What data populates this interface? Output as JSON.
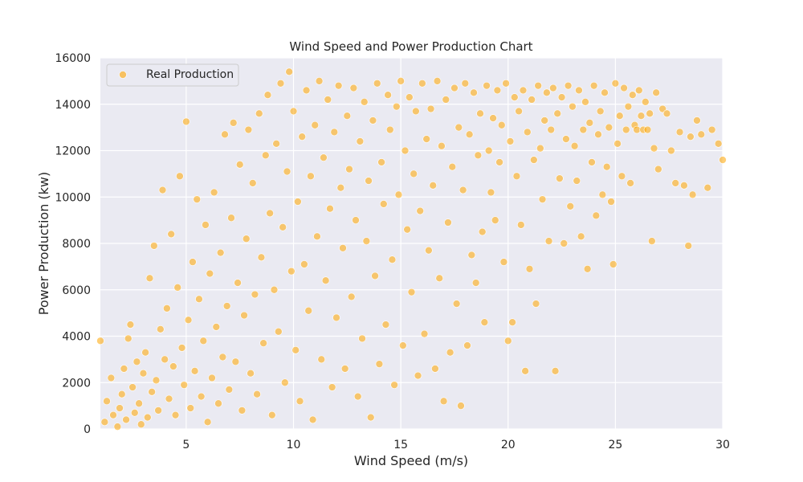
{
  "chart_data": {
    "type": "scatter",
    "title": "Wind Speed and Power Production Chart",
    "xlabel": "Wind Speed (m/s)",
    "ylabel": "Power Production (kw)",
    "xlim": [
      1,
      30
    ],
    "ylim": [
      0,
      16000
    ],
    "xticks": [
      5,
      10,
      15,
      20,
      25,
      30
    ],
    "yticks": [
      0,
      2000,
      4000,
      6000,
      8000,
      10000,
      12000,
      14000,
      16000
    ],
    "grid": true,
    "legend_position": "top-left",
    "series": [
      {
        "name": "Real Production",
        "color": "#ffa500",
        "points": [
          [
            1.0,
            3800
          ],
          [
            1.2,
            300
          ],
          [
            1.3,
            1200
          ],
          [
            1.5,
            2200
          ],
          [
            1.6,
            600
          ],
          [
            1.8,
            100
          ],
          [
            1.9,
            900
          ],
          [
            2.0,
            1500
          ],
          [
            2.1,
            2600
          ],
          [
            2.2,
            400
          ],
          [
            2.3,
            3900
          ],
          [
            2.4,
            4500
          ],
          [
            2.5,
            1800
          ],
          [
            2.6,
            700
          ],
          [
            2.7,
            2900
          ],
          [
            2.8,
            1100
          ],
          [
            2.9,
            200
          ],
          [
            3.0,
            2400
          ],
          [
            3.1,
            3300
          ],
          [
            3.2,
            500
          ],
          [
            3.3,
            6500
          ],
          [
            3.4,
            1600
          ],
          [
            3.5,
            7900
          ],
          [
            3.6,
            2100
          ],
          [
            3.7,
            800
          ],
          [
            3.8,
            4300
          ],
          [
            3.9,
            10300
          ],
          [
            4.0,
            3000
          ],
          [
            4.1,
            5200
          ],
          [
            4.2,
            1300
          ],
          [
            4.3,
            8400
          ],
          [
            4.4,
            2700
          ],
          [
            4.5,
            600
          ],
          [
            4.6,
            6100
          ],
          [
            4.7,
            10900
          ],
          [
            4.8,
            3500
          ],
          [
            4.9,
            1900
          ],
          [
            5.0,
            13250
          ],
          [
            5.1,
            4700
          ],
          [
            5.2,
            900
          ],
          [
            5.3,
            7200
          ],
          [
            5.4,
            2500
          ],
          [
            5.5,
            9900
          ],
          [
            5.6,
            5600
          ],
          [
            5.7,
            1400
          ],
          [
            5.8,
            3800
          ],
          [
            5.9,
            8800
          ],
          [
            6.0,
            300
          ],
          [
            6.1,
            6700
          ],
          [
            6.2,
            2200
          ],
          [
            6.3,
            10200
          ],
          [
            6.4,
            4400
          ],
          [
            6.5,
            1100
          ],
          [
            6.6,
            7600
          ],
          [
            6.7,
            3100
          ],
          [
            6.8,
            12700
          ],
          [
            6.9,
            5300
          ],
          [
            7.0,
            1700
          ],
          [
            7.1,
            9100
          ],
          [
            7.2,
            13200
          ],
          [
            7.3,
            2900
          ],
          [
            7.4,
            6300
          ],
          [
            7.5,
            11400
          ],
          [
            7.6,
            800
          ],
          [
            7.7,
            4900
          ],
          [
            7.8,
            8200
          ],
          [
            7.9,
            12900
          ],
          [
            8.0,
            2400
          ],
          [
            8.1,
            10600
          ],
          [
            8.2,
            5800
          ],
          [
            8.3,
            1500
          ],
          [
            8.4,
            13600
          ],
          [
            8.5,
            7400
          ],
          [
            8.6,
            3700
          ],
          [
            8.7,
            11800
          ],
          [
            8.8,
            14400
          ],
          [
            8.9,
            9300
          ],
          [
            9.0,
            600
          ],
          [
            9.1,
            6000
          ],
          [
            9.2,
            12300
          ],
          [
            9.3,
            4200
          ],
          [
            9.4,
            14900
          ],
          [
            9.5,
            8700
          ],
          [
            9.6,
            2000
          ],
          [
            9.7,
            11100
          ],
          [
            9.8,
            15400
          ],
          [
            9.9,
            6800
          ],
          [
            10.0,
            13700
          ],
          [
            10.1,
            3400
          ],
          [
            10.2,
            9800
          ],
          [
            10.3,
            1200
          ],
          [
            10.4,
            12600
          ],
          [
            10.5,
            7100
          ],
          [
            10.6,
            14600
          ],
          [
            10.7,
            5100
          ],
          [
            10.8,
            10900
          ],
          [
            10.9,
            400
          ],
          [
            11.0,
            13100
          ],
          [
            11.1,
            8300
          ],
          [
            11.2,
            15000
          ],
          [
            11.3,
            3000
          ],
          [
            11.4,
            11700
          ],
          [
            11.5,
            6400
          ],
          [
            11.6,
            14200
          ],
          [
            11.7,
            9500
          ],
          [
            11.8,
            1800
          ],
          [
            11.9,
            12800
          ],
          [
            12.0,
            4800
          ],
          [
            12.1,
            14800
          ],
          [
            12.2,
            10400
          ],
          [
            12.3,
            7800
          ],
          [
            12.4,
            2600
          ],
          [
            12.5,
            13500
          ],
          [
            12.6,
            11200
          ],
          [
            12.7,
            5700
          ],
          [
            12.8,
            14700
          ],
          [
            12.9,
            9000
          ],
          [
            13.0,
            1400
          ],
          [
            13.1,
            12400
          ],
          [
            13.2,
            3900
          ],
          [
            13.3,
            14100
          ],
          [
            13.4,
            8100
          ],
          [
            13.5,
            10700
          ],
          [
            13.6,
            500
          ],
          [
            13.7,
            13300
          ],
          [
            13.8,
            6600
          ],
          [
            13.9,
            14900
          ],
          [
            14.0,
            2800
          ],
          [
            14.1,
            11500
          ],
          [
            14.2,
            9700
          ],
          [
            14.3,
            4500
          ],
          [
            14.4,
            14400
          ],
          [
            14.5,
            12900
          ],
          [
            14.6,
            7300
          ],
          [
            14.7,
            1900
          ],
          [
            14.8,
            13900
          ],
          [
            14.9,
            10100
          ],
          [
            15.0,
            15000
          ],
          [
            15.1,
            3600
          ],
          [
            15.2,
            12000
          ],
          [
            15.3,
            8600
          ],
          [
            15.4,
            14300
          ],
          [
            15.5,
            5900
          ],
          [
            15.6,
            11000
          ],
          [
            15.7,
            13700
          ],
          [
            15.8,
            2300
          ],
          [
            15.9,
            9400
          ],
          [
            16.0,
            14900
          ],
          [
            16.1,
            4100
          ],
          [
            16.2,
            12500
          ],
          [
            16.3,
            7700
          ],
          [
            16.4,
            13800
          ],
          [
            16.5,
            10500
          ],
          [
            16.6,
            2600
          ],
          [
            16.7,
            15000
          ],
          [
            16.8,
            6500
          ],
          [
            16.9,
            12200
          ],
          [
            17.0,
            1200
          ],
          [
            17.1,
            14200
          ],
          [
            17.2,
            8900
          ],
          [
            17.3,
            3300
          ],
          [
            17.4,
            11300
          ],
          [
            17.5,
            14700
          ],
          [
            17.6,
            5400
          ],
          [
            17.7,
            13000
          ],
          [
            17.8,
            1000
          ],
          [
            17.9,
            10300
          ],
          [
            18.0,
            14900
          ],
          [
            18.1,
            3600
          ],
          [
            18.2,
            12700
          ],
          [
            18.3,
            7500
          ],
          [
            18.4,
            14500
          ],
          [
            18.5,
            6300
          ],
          [
            18.6,
            11800
          ],
          [
            18.7,
            13600
          ],
          [
            18.8,
            8500
          ],
          [
            18.9,
            4600
          ],
          [
            19.0,
            14800
          ],
          [
            19.1,
            12000
          ],
          [
            19.2,
            10200
          ],
          [
            19.3,
            13400
          ],
          [
            19.4,
            9000
          ],
          [
            19.5,
            14600
          ],
          [
            19.6,
            11500
          ],
          [
            19.7,
            13100
          ],
          [
            19.8,
            7200
          ],
          [
            19.9,
            14900
          ],
          [
            20.0,
            3800
          ],
          [
            20.1,
            12400
          ],
          [
            20.2,
            4600
          ],
          [
            20.3,
            14300
          ],
          [
            20.4,
            10900
          ],
          [
            20.5,
            13700
          ],
          [
            20.6,
            8800
          ],
          [
            20.7,
            14600
          ],
          [
            20.8,
            2500
          ],
          [
            20.9,
            12800
          ],
          [
            21.0,
            6900
          ],
          [
            21.1,
            14200
          ],
          [
            21.2,
            11600
          ],
          [
            21.3,
            5400
          ],
          [
            21.4,
            14800
          ],
          [
            21.5,
            12100
          ],
          [
            21.6,
            9900
          ],
          [
            21.7,
            13300
          ],
          [
            21.8,
            14500
          ],
          [
            21.9,
            8100
          ],
          [
            22.0,
            12900
          ],
          [
            22.1,
            14700
          ],
          [
            22.2,
            2500
          ],
          [
            22.3,
            13600
          ],
          [
            22.4,
            10800
          ],
          [
            22.5,
            14300
          ],
          [
            22.6,
            8000
          ],
          [
            22.7,
            12500
          ],
          [
            22.8,
            14800
          ],
          [
            22.9,
            9600
          ],
          [
            23.0,
            13900
          ],
          [
            23.1,
            12200
          ],
          [
            23.2,
            10700
          ],
          [
            23.3,
            14600
          ],
          [
            23.4,
            8300
          ],
          [
            23.5,
            12900
          ],
          [
            23.6,
            14100
          ],
          [
            23.7,
            6900
          ],
          [
            23.8,
            13200
          ],
          [
            23.9,
            11500
          ],
          [
            24.0,
            14800
          ],
          [
            24.1,
            9200
          ],
          [
            24.2,
            12700
          ],
          [
            24.3,
            13700
          ],
          [
            24.4,
            10100
          ],
          [
            24.5,
            14500
          ],
          [
            24.6,
            11300
          ],
          [
            24.7,
            13000
          ],
          [
            24.8,
            9800
          ],
          [
            24.9,
            7100
          ],
          [
            25.0,
            14900
          ],
          [
            25.1,
            12300
          ],
          [
            25.2,
            13500
          ],
          [
            25.3,
            10900
          ],
          [
            25.4,
            14700
          ],
          [
            25.5,
            12900
          ],
          [
            25.6,
            13900
          ],
          [
            25.7,
            10600
          ],
          [
            25.8,
            14400
          ],
          [
            25.9,
            13100
          ],
          [
            26.0,
            12900
          ],
          [
            26.1,
            14600
          ],
          [
            26.2,
            13500
          ],
          [
            26.3,
            12900
          ],
          [
            26.4,
            14100
          ],
          [
            26.5,
            12900
          ],
          [
            26.6,
            13600
          ],
          [
            26.7,
            8100
          ],
          [
            26.8,
            12100
          ],
          [
            26.9,
            14500
          ],
          [
            27.0,
            11200
          ],
          [
            27.2,
            13800
          ],
          [
            27.4,
            13600
          ],
          [
            27.6,
            12000
          ],
          [
            27.8,
            10600
          ],
          [
            28.0,
            12800
          ],
          [
            28.2,
            10500
          ],
          [
            28.4,
            7900
          ],
          [
            28.5,
            12600
          ],
          [
            28.6,
            10100
          ],
          [
            28.8,
            13300
          ],
          [
            29.0,
            12700
          ],
          [
            29.3,
            10400
          ],
          [
            29.5,
            12900
          ],
          [
            29.8,
            12300
          ],
          [
            30.0,
            11600
          ]
        ]
      }
    ]
  }
}
